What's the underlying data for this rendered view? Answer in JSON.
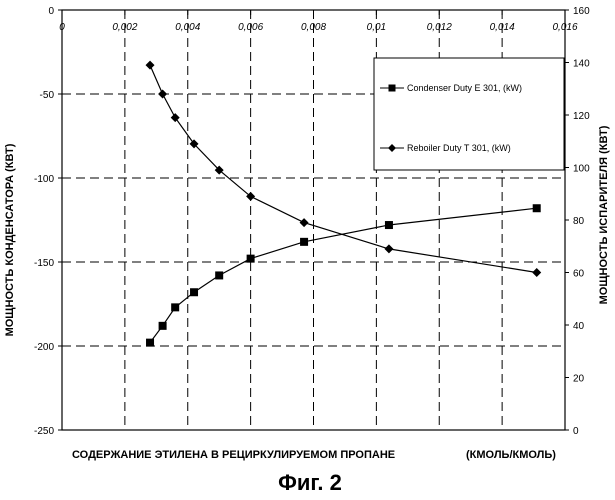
{
  "chart_data": {
    "type": "line",
    "x_axis": {
      "range": [
        0,
        0.016
      ],
      "ticks": [
        "0",
        "0,002",
        "0,004",
        "0,006",
        "0,008",
        "0,01",
        "0,012",
        "0,014",
        "0,016"
      ],
      "position": "top",
      "label": "СОДЕРЖАНИЕ ЭТИЛЕНА В РЕЦИРКУЛИРУЕМОМ ПРОПАНЕ",
      "unit": "(КМОЛЬ/КМОЛЬ)"
    },
    "y_left": {
      "range": [
        -250,
        0
      ],
      "ticks": [
        "0",
        "-50",
        "-100",
        "-150",
        "-200",
        "-250"
      ],
      "label": "МОЩНОСТЬ КОНДЕНСАТОРА (КВТ)"
    },
    "y_right": {
      "range": [
        0,
        160
      ],
      "ticks": [
        "160",
        "140",
        "120",
        "100",
        "80",
        "60",
        "40",
        "20",
        "0"
      ],
      "label": "МОЩНОСТЬ ИСПАРИТЕЛЯ (КВТ)"
    },
    "grid": "dashed",
    "legend_position": "top-right",
    "series": [
      {
        "name": "Condenser Duty E 301, (kW)",
        "axis": "left",
        "marker": "square",
        "x": [
          0.0028,
          0.0032,
          0.0036,
          0.0042,
          0.005,
          0.006,
          0.0077,
          0.0104,
          0.0151
        ],
        "y": [
          -198,
          -188,
          -177,
          -168,
          -158,
          -148,
          -138,
          -128,
          -118
        ]
      },
      {
        "name": "Reboiler Duty  T 301, (kW)",
        "axis": "right",
        "marker": "diamond",
        "x": [
          0.0028,
          0.0032,
          0.0036,
          0.0042,
          0.005,
          0.006,
          0.0077,
          0.0104,
          0.0151
        ],
        "y": [
          139,
          128,
          119,
          109,
          99,
          89,
          79,
          69,
          60
        ]
      }
    ],
    "caption": "Фиг. 2"
  }
}
